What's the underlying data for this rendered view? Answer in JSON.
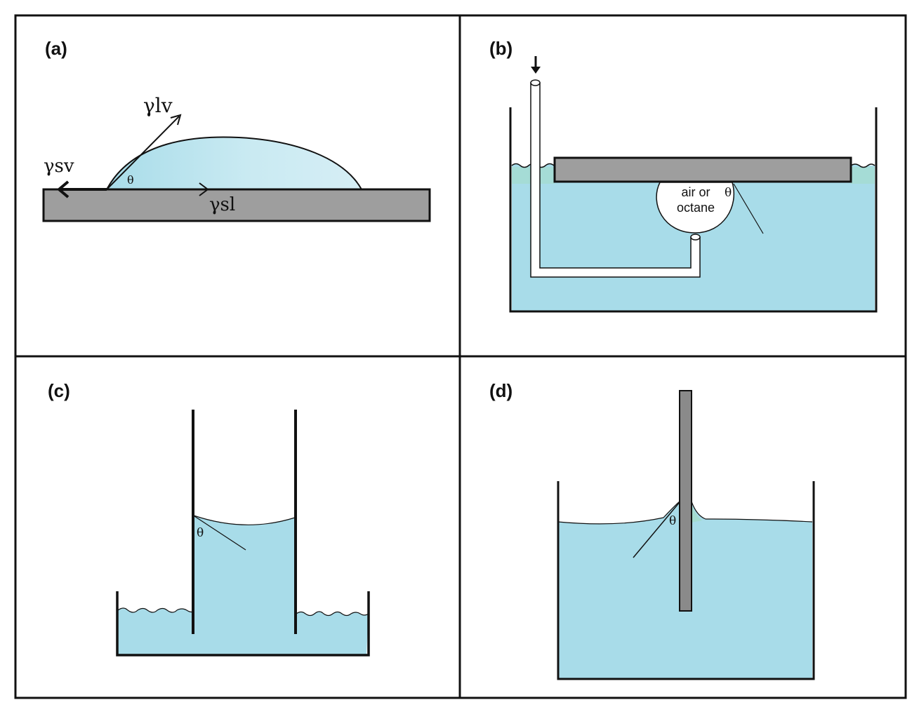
{
  "colors": {
    "water": "#a8dce9",
    "water_light": "#d6eef5",
    "meniscus_tint": "#9fe0c8",
    "solid": "#9e9e9e",
    "solid_dark": "#8a8a8a",
    "outline": "#111111",
    "background": "#ffffff"
  },
  "panels": {
    "a": {
      "label": "(a)",
      "gamma_lv": "γlv",
      "gamma_sv": "γsv",
      "gamma_sl": "γsl",
      "theta": "θ"
    },
    "b": {
      "label": "(b)",
      "bubble_line1": "air or",
      "bubble_line2": "octane",
      "theta": "θ",
      "arrow_icon": "down-arrow-icon"
    },
    "c": {
      "label": "(c)",
      "theta": "θ"
    },
    "d": {
      "label": "(d)",
      "theta": "θ"
    }
  }
}
